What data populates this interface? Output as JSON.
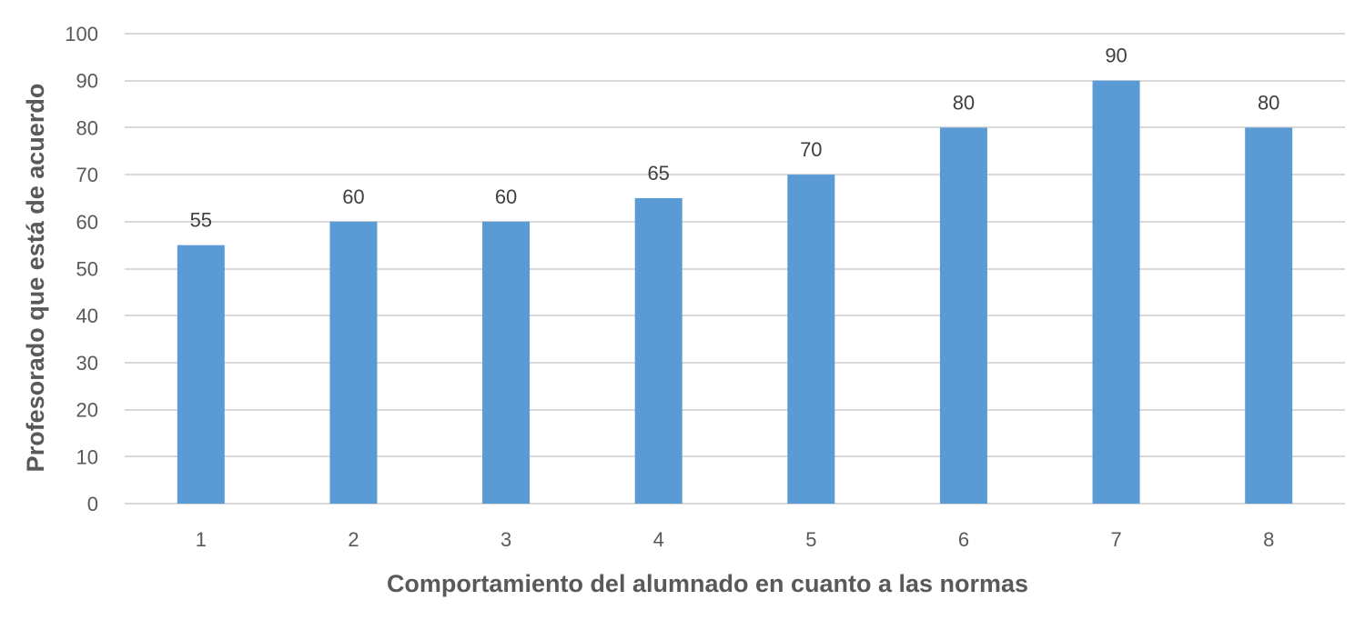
{
  "chart_data": {
    "type": "bar",
    "categories": [
      "1",
      "2",
      "3",
      "4",
      "5",
      "6",
      "7",
      "8"
    ],
    "values": [
      55,
      60,
      60,
      65,
      70,
      80,
      90,
      80
    ],
    "xlabel": "Comportamiento del alumnado en cuanto a las normas",
    "ylabel": "Profesorado que está de acuerdo",
    "ylim": [
      0,
      100
    ],
    "yticks": [
      0,
      10,
      20,
      30,
      40,
      50,
      60,
      70,
      80,
      90,
      100
    ],
    "grid": true,
    "legend": "none",
    "data_labels": true,
    "bar_color": "#5b9bd5"
  }
}
